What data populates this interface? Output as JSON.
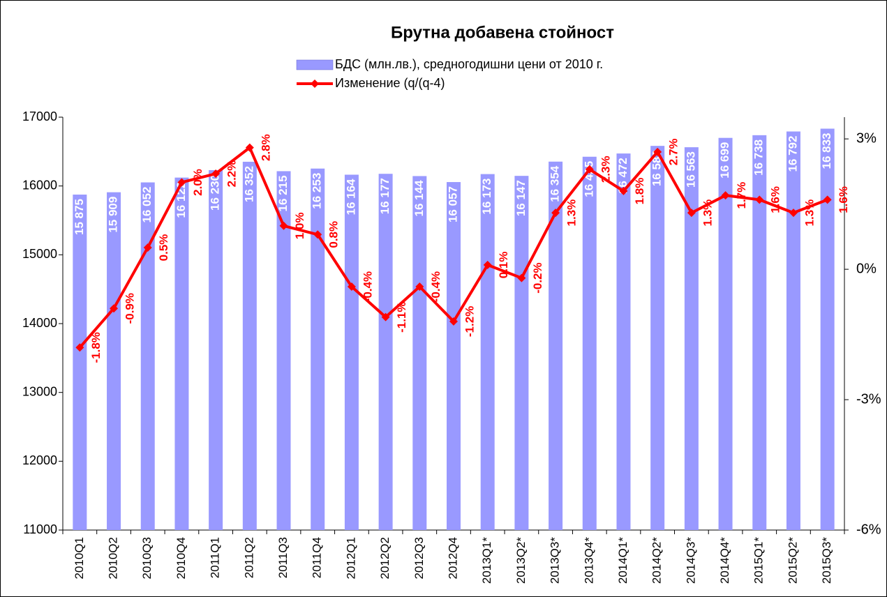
{
  "chart_data": {
    "type": "bar",
    "title": "Брутна добавена стойност",
    "categories": [
      "2010Q1",
      "2010Q2",
      "2010Q3",
      "2010Q4",
      "2011Q1",
      "2011Q2",
      "2011Q3",
      "2011Q4",
      "2012Q1",
      "2012Q2",
      "2012Q3",
      "2012Q4",
      "2013Q1*",
      "2013Q2*",
      "2013Q3*",
      "2013Q4*",
      "2014Q1*",
      "2014Q2*",
      "2014Q3*",
      "2014Q4*",
      "2015Q1*",
      "2015Q2*",
      "2015Q3*"
    ],
    "series": [
      {
        "name": "БДС (млн.лв.), средногодишни цени от 2010 г.",
        "type": "bar",
        "color": "#9999ff",
        "values": [
          15875,
          15909,
          16052,
          16122,
          16230,
          16352,
          16215,
          16253,
          16164,
          16177,
          16144,
          16057,
          16173,
          16147,
          16354,
          16425,
          16472,
          16583,
          16563,
          16699,
          16738,
          16792,
          16833
        ],
        "value_labels": [
          "15 875",
          "15 909",
          "16 052",
          "16 122",
          "16 230",
          "16 352",
          "16 215",
          "16 253",
          "16 164",
          "16 177",
          "16 144",
          "16 057",
          "16 173",
          "16 147",
          "16 354",
          "16 425",
          "16 472",
          "16 583",
          "16 563",
          "16 699",
          "16 738",
          "16 792",
          "16 833"
        ]
      },
      {
        "name": "Изменение (q/(q-4)",
        "type": "line",
        "axis": "y2",
        "color": "#ff0000",
        "values": [
          -1.8,
          -0.9,
          0.5,
          2.0,
          2.2,
          2.8,
          1.0,
          0.8,
          -0.4,
          -1.1,
          -0.4,
          -1.2,
          0.1,
          -0.2,
          1.3,
          2.3,
          1.8,
          2.7,
          1.3,
          1.7,
          1.6,
          1.3,
          1.6
        ],
        "value_labels": [
          "-1.8%",
          "-0.9%",
          "0.5%",
          "2.0%",
          "2.2%",
          "2.8%",
          "1.0%",
          "0.8%",
          "-0.4%",
          "-1.1%",
          "-0.4%",
          "-1.2%",
          "0.1%",
          "-0.2%",
          "1.3%",
          "2.3%",
          "1.8%",
          "2.7%",
          "1.3%",
          "1.7%",
          "1.6%",
          "1.3%",
          "1.6%"
        ]
      }
    ],
    "ylim": [
      11000,
      17000
    ],
    "yticks": [
      11000,
      12000,
      13000,
      14000,
      15000,
      16000,
      17000
    ],
    "y2lim": [
      -6,
      3.5
    ],
    "y2ticks": [
      {
        "value": -6,
        "label": "-6%"
      },
      {
        "value": -3,
        "label": "-3%"
      },
      {
        "value": 0,
        "label": "0%"
      },
      {
        "value": 3,
        "label": "3%"
      }
    ],
    "grid": false
  }
}
